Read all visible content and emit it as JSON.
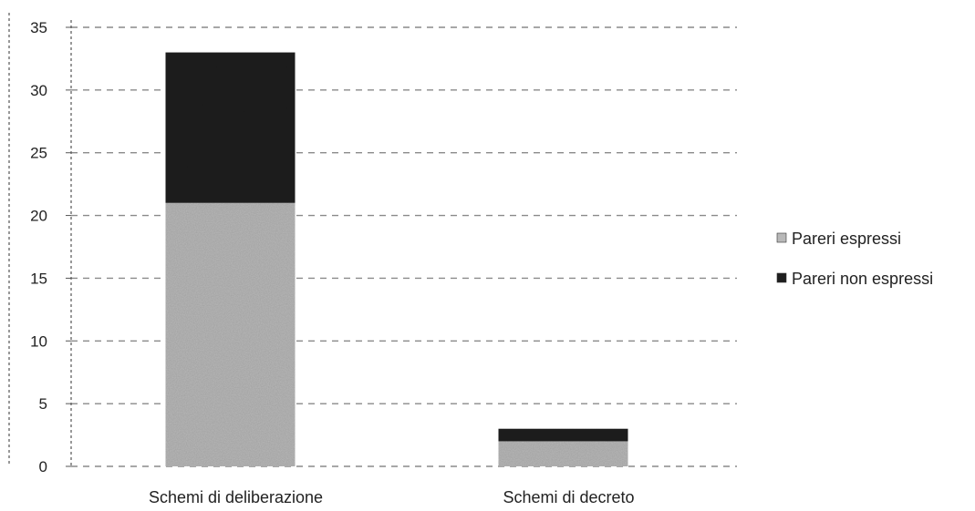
{
  "chart_data": {
    "type": "bar",
    "stacked": true,
    "title": "",
    "xlabel": "",
    "ylabel": "",
    "categories": [
      "Schemi di deliberazione",
      "Schemi di decreto"
    ],
    "series": [
      {
        "name": "Pareri espressi",
        "values": [
          21,
          2
        ],
        "color": "#b8b8b8"
      },
      {
        "name": "Pareri non espressi",
        "values": [
          12,
          1
        ],
        "color": "#1e1e1e"
      }
    ],
    "ylim": [
      0,
      35
    ],
    "yticks": [
      0,
      5,
      10,
      15,
      20,
      25,
      30,
      35
    ],
    "grid": true,
    "legend_position": "right"
  }
}
